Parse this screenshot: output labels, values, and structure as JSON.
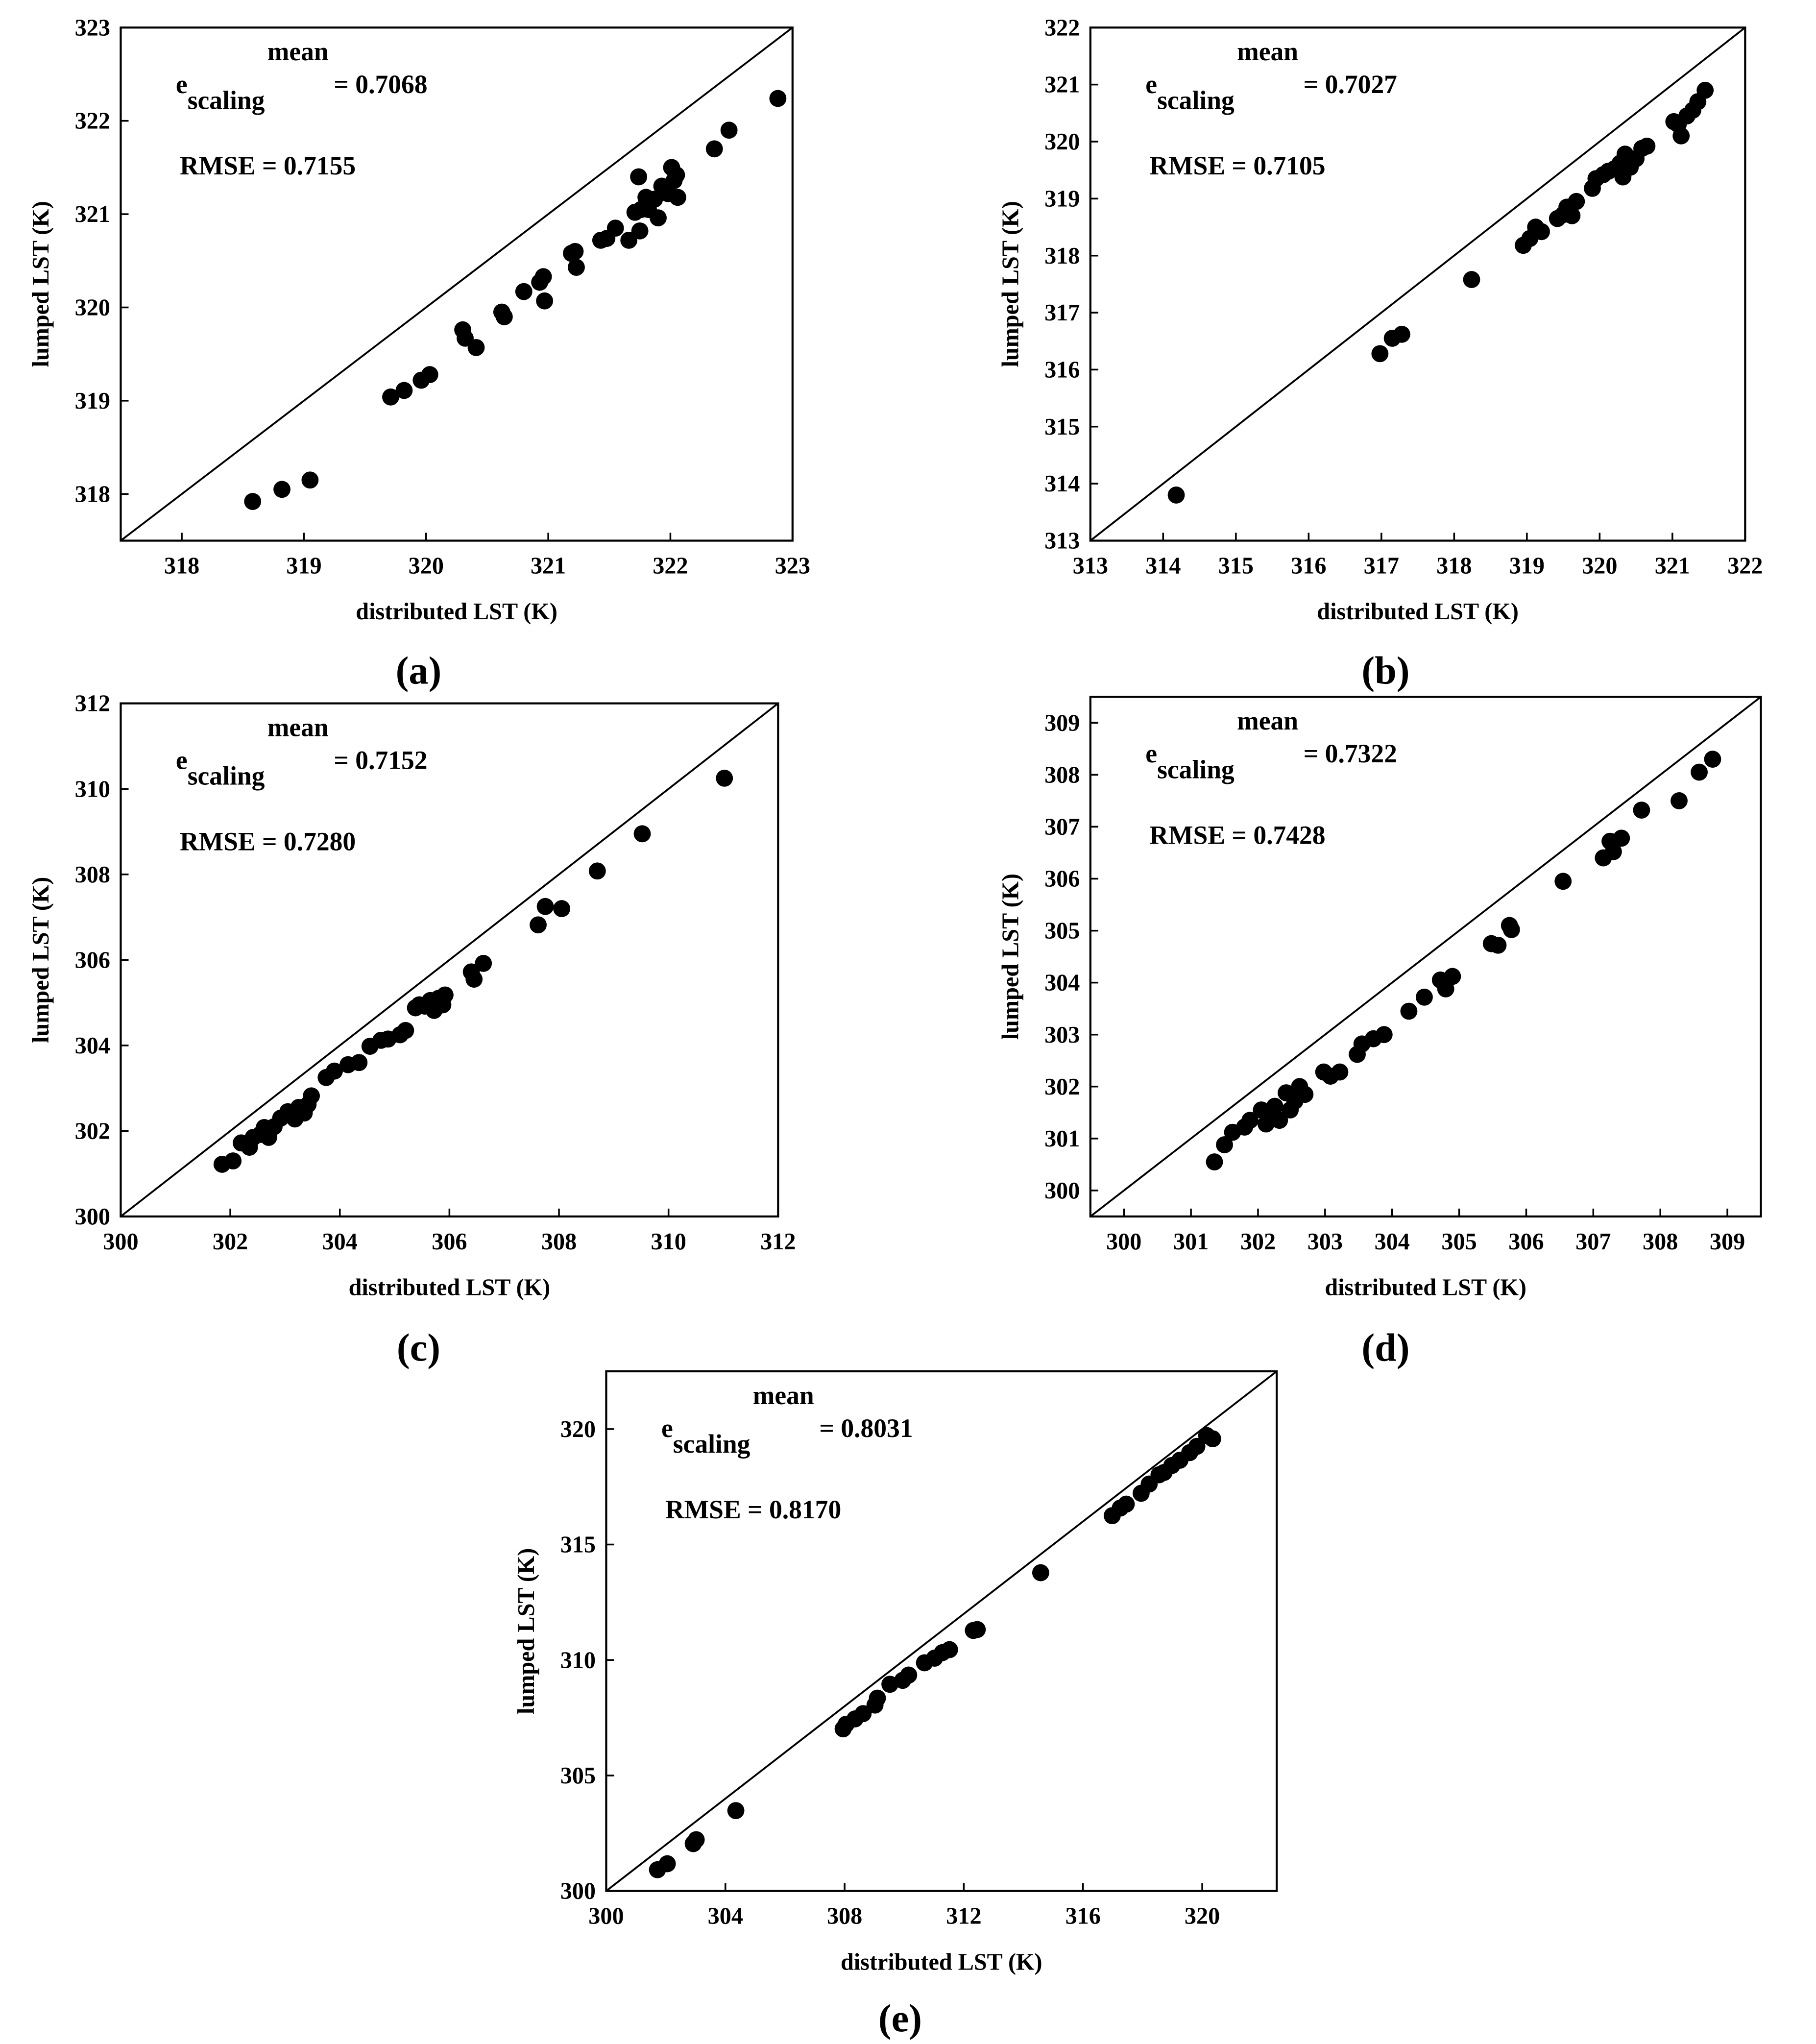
{
  "chart_data": [
    {
      "panel_label": "a",
      "type": "scatter",
      "title": "",
      "xlabel": "distributed LST (K)",
      "ylabel": "lumped LST (K)",
      "xlim": [
        317.5,
        323
      ],
      "ylim": [
        317.5,
        323
      ],
      "xticks": [
        318,
        319,
        320,
        321,
        322,
        323
      ],
      "yticks": [
        318,
        319,
        320,
        321,
        322,
        323
      ],
      "annotation": {
        "e_base": "e",
        "e_sub": "scaling",
        "e_sup": "mean",
        "e_value": "= 0.7068",
        "rmse": "RMSE = 0.7155"
      },
      "reference_line": "1:1",
      "x": [
        318.58,
        318.82,
        319.05,
        319.71,
        319.82,
        319.96,
        320.03,
        320.3,
        320.32,
        320.41,
        320.62,
        320.64,
        320.8,
        320.93,
        320.96,
        320.97,
        321.19,
        321.22,
        321.23,
        321.43,
        321.48,
        321.55,
        321.66,
        321.71,
        321.74,
        321.75,
        321.76,
        321.8,
        321.82,
        321.87,
        321.9,
        321.93,
        321.98,
        322.01,
        322.03,
        322.05,
        322.06,
        322.36,
        322.48,
        322.88
      ],
      "y": [
        317.92,
        318.05,
        318.15,
        319.04,
        319.11,
        319.22,
        319.28,
        319.76,
        319.67,
        319.57,
        319.95,
        319.9,
        320.17,
        320.27,
        320.33,
        320.07,
        320.58,
        320.6,
        320.43,
        320.72,
        320.74,
        320.85,
        320.72,
        321.02,
        321.4,
        320.82,
        321.05,
        321.18,
        321.05,
        321.16,
        320.96,
        321.3,
        321.22,
        321.5,
        321.36,
        321.42,
        321.18,
        321.7,
        321.9,
        322.24
      ]
    },
    {
      "panel_label": "b",
      "type": "scatter",
      "title": "",
      "xlabel": "distributed LST (K)",
      "ylabel": "lumped LST (K)",
      "xlim": [
        313,
        322
      ],
      "ylim": [
        313,
        322
      ],
      "xticks": [
        313,
        314,
        315,
        316,
        317,
        318,
        319,
        320,
        321,
        322
      ],
      "yticks": [
        313,
        314,
        315,
        316,
        317,
        318,
        319,
        320,
        321,
        322
      ],
      "annotation": {
        "e_base": "e",
        "e_sub": "scaling",
        "e_sup": "mean",
        "e_value": "= 0.7027",
        "rmse": "RMSE = 0.7105"
      },
      "reference_line": "1:1",
      "x": [
        314.18,
        316.98,
        317.15,
        317.28,
        318.24,
        318.95,
        319.04,
        319.12,
        319.2,
        319.42,
        319.5,
        319.55,
        319.62,
        319.68,
        319.9,
        319.95,
        320.05,
        320.12,
        320.2,
        320.28,
        320.32,
        320.35,
        320.42,
        320.5,
        320.58,
        320.65,
        321.02,
        321.08,
        321.12,
        321.2,
        321.28,
        321.35,
        321.45
      ],
      "y": [
        313.8,
        316.28,
        316.55,
        316.62,
        317.58,
        318.18,
        318.3,
        318.5,
        318.42,
        318.65,
        318.72,
        318.85,
        318.7,
        318.95,
        319.18,
        319.35,
        319.42,
        319.48,
        319.52,
        319.62,
        319.38,
        319.78,
        319.55,
        319.7,
        319.88,
        319.92,
        320.35,
        320.3,
        320.1,
        320.45,
        320.55,
        320.7,
        320.9
      ]
    },
    {
      "panel_label": "c",
      "type": "scatter",
      "title": "",
      "xlabel": "distributed LST (K)",
      "ylabel": "lumped LST (K)",
      "xlim": [
        300,
        312
      ],
      "ylim": [
        300,
        312
      ],
      "xticks": [
        300,
        302,
        304,
        306,
        308,
        310,
        312
      ],
      "yticks": [
        300,
        302,
        304,
        306,
        308,
        310,
        312
      ],
      "annotation": {
        "e_base": "e",
        "e_sub": "scaling",
        "e_sup": "mean",
        "e_value": "= 0.7152",
        "rmse": "RMSE = 0.7280"
      },
      "reference_line": "1:1",
      "x": [
        301.85,
        302.05,
        302.2,
        302.35,
        302.42,
        302.55,
        302.62,
        302.7,
        302.8,
        302.92,
        303.05,
        303.18,
        303.25,
        303.35,
        303.42,
        303.48,
        303.75,
        303.9,
        304.15,
        304.35,
        304.55,
        304.75,
        304.88,
        305.1,
        305.2,
        305.38,
        305.45,
        305.55,
        305.65,
        305.72,
        305.8,
        305.88,
        305.92,
        306.4,
        306.45,
        306.62,
        307.62,
        307.75,
        308.05,
        308.7,
        309.52,
        311.02
      ],
      "y": [
        301.22,
        301.3,
        301.72,
        301.62,
        301.85,
        301.92,
        302.08,
        301.85,
        302.1,
        302.3,
        302.45,
        302.28,
        302.55,
        302.42,
        302.62,
        302.82,
        303.25,
        303.4,
        303.55,
        303.6,
        303.98,
        304.12,
        304.15,
        304.25,
        304.35,
        304.88,
        304.95,
        304.92,
        305.05,
        304.82,
        305.1,
        304.95,
        305.18,
        305.72,
        305.55,
        305.92,
        306.82,
        307.25,
        307.2,
        308.08,
        308.95,
        310.25
      ]
    },
    {
      "panel_label": "d",
      "type": "scatter",
      "title": "",
      "xlabel": "distributed LST (K)",
      "ylabel": "lumped LST (K)",
      "xlim": [
        299.5,
        309.5
      ],
      "ylim": [
        299.5,
        309.5
      ],
      "xticks": [
        300,
        301,
        302,
        303,
        304,
        305,
        306,
        307,
        308,
        309
      ],
      "yticks": [
        300,
        301,
        302,
        303,
        304,
        305,
        306,
        307,
        308,
        309
      ],
      "annotation": {
        "e_base": "e",
        "e_sub": "scaling",
        "e_sup": "mean",
        "e_value": "= 0.7322",
        "rmse": "RMSE = 0.7428"
      },
      "reference_line": "1:1",
      "x": [
        301.35,
        301.5,
        301.62,
        301.8,
        301.88,
        302.05,
        302.12,
        302.2,
        302.25,
        302.32,
        302.42,
        302.48,
        302.55,
        302.62,
        302.7,
        302.98,
        303.08,
        303.22,
        303.48,
        303.55,
        303.72,
        303.88,
        304.25,
        304.48,
        304.72,
        304.8,
        304.9,
        305.48,
        305.58,
        305.75,
        305.78,
        306.55,
        307.15,
        307.25,
        307.3,
        307.42,
        307.72,
        308.28,
        308.58,
        308.78
      ],
      "y": [
        300.55,
        300.88,
        301.12,
        301.22,
        301.35,
        301.55,
        301.28,
        301.48,
        301.62,
        301.35,
        301.88,
        301.55,
        301.72,
        302.0,
        301.85,
        302.28,
        302.2,
        302.28,
        302.62,
        302.82,
        302.92,
        303.0,
        303.45,
        303.72,
        304.05,
        303.88,
        304.12,
        304.75,
        304.72,
        305.1,
        305.02,
        305.95,
        306.4,
        306.72,
        306.52,
        306.78,
        307.32,
        307.5,
        308.05,
        308.3
      ]
    },
    {
      "panel_label": "e",
      "type": "scatter",
      "title": "",
      "xlabel": "distributed LST (K)",
      "ylabel": "lumped LST (K)",
      "xlim": [
        300,
        322.5
      ],
      "ylim": [
        300,
        322.5
      ],
      "xticks": [
        300,
        304,
        308,
        312,
        316,
        320
      ],
      "yticks": [
        300,
        305,
        310,
        315,
        320
      ],
      "annotation": {
        "e_base": "e",
        "e_sub": "scaling",
        "e_sup": "mean",
        "e_value": "= 0.8031",
        "rmse": "RMSE = 0.8170"
      },
      "reference_line": "1:1",
      "x": [
        301.72,
        302.05,
        302.92,
        303.02,
        304.35,
        307.95,
        308.05,
        308.35,
        308.62,
        309.02,
        309.1,
        309.52,
        309.95,
        310.15,
        310.68,
        311.02,
        311.28,
        311.52,
        312.32,
        312.45,
        314.58,
        316.98,
        317.25,
        317.45,
        317.95,
        318.22,
        318.55,
        318.72,
        318.98,
        319.25,
        319.58,
        319.82,
        320.15,
        320.35
      ],
      "y": [
        300.92,
        301.18,
        302.05,
        302.22,
        303.48,
        307.02,
        307.22,
        307.45,
        307.68,
        308.05,
        308.35,
        308.95,
        309.12,
        309.35,
        309.88,
        310.08,
        310.32,
        310.45,
        311.28,
        311.32,
        313.78,
        316.25,
        316.58,
        316.75,
        317.22,
        317.62,
        318.02,
        318.12,
        318.42,
        318.65,
        318.98,
        319.25,
        319.72,
        319.58
      ]
    }
  ]
}
